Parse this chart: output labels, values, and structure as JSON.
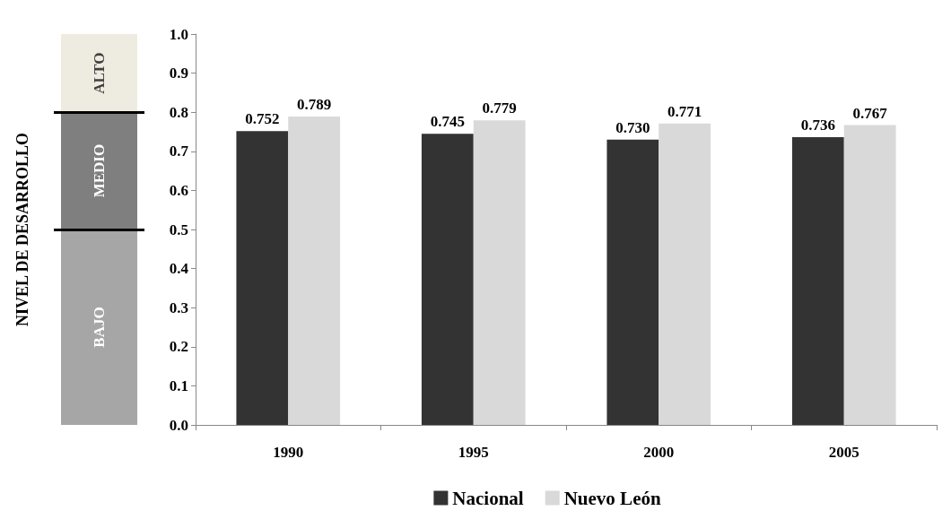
{
  "chart_data": [
    {
      "type": "bar",
      "stacked": true,
      "ylabel": "NIVEL DE DESARROLLO",
      "categories": [
        null
      ],
      "series": [
        {
          "name": "BAJO",
          "color": "#a6a6a6",
          "values": [
            0.5
          ]
        },
        {
          "name": "MEDIO",
          "color": "#7f7f7f",
          "values": [
            0.3
          ]
        },
        {
          "name": "ALTO",
          "color": "#eeece1",
          "values": [
            0.2
          ]
        }
      ],
      "ylim": [
        0,
        1
      ],
      "tick_labels": false,
      "ref_lines": [
        {
          "axis": "y",
          "value": 0.5,
          "color": "#000000"
        },
        {
          "axis": "y",
          "value": 0.8,
          "color": "#000000"
        }
      ],
      "legend": false
    },
    {
      "type": "bar",
      "categories": [
        "1990",
        "1995",
        "2000",
        "2005"
      ],
      "series": [
        {
          "name": "Nacional",
          "color": "#333333",
          "values": [
            0.752,
            0.745,
            0.73,
            0.736
          ],
          "value_labels": [
            "0.752",
            "0.745",
            "0.730",
            "0.736"
          ]
        },
        {
          "name": "Nuevo León",
          "color": "#d9d9d9",
          "values": [
            0.789,
            0.779,
            0.771,
            0.767
          ],
          "value_labels": [
            "0.789",
            "0.779",
            "0.771",
            "0.767"
          ]
        }
      ],
      "ylim": [
        0,
        1
      ],
      "yticks": [
        {
          "value": 0,
          "label": "0.0"
        },
        {
          "value": 0.1,
          "label": "0.1"
        },
        {
          "value": 0.2,
          "label": "0.2"
        },
        {
          "value": 0.3,
          "label": "0.3"
        },
        {
          "value": 0.4,
          "label": "0.4"
        },
        {
          "value": 0.5,
          "label": "0.5"
        },
        {
          "value": 0.6,
          "label": "0.6"
        },
        {
          "value": 0.7,
          "label": "0.7"
        },
        {
          "value": 0.8,
          "label": "0.8"
        },
        {
          "value": 0.9,
          "label": "0.9"
        },
        {
          "value": 1,
          "label": "1.0"
        }
      ],
      "grid": false,
      "legend": "bottom"
    }
  ]
}
